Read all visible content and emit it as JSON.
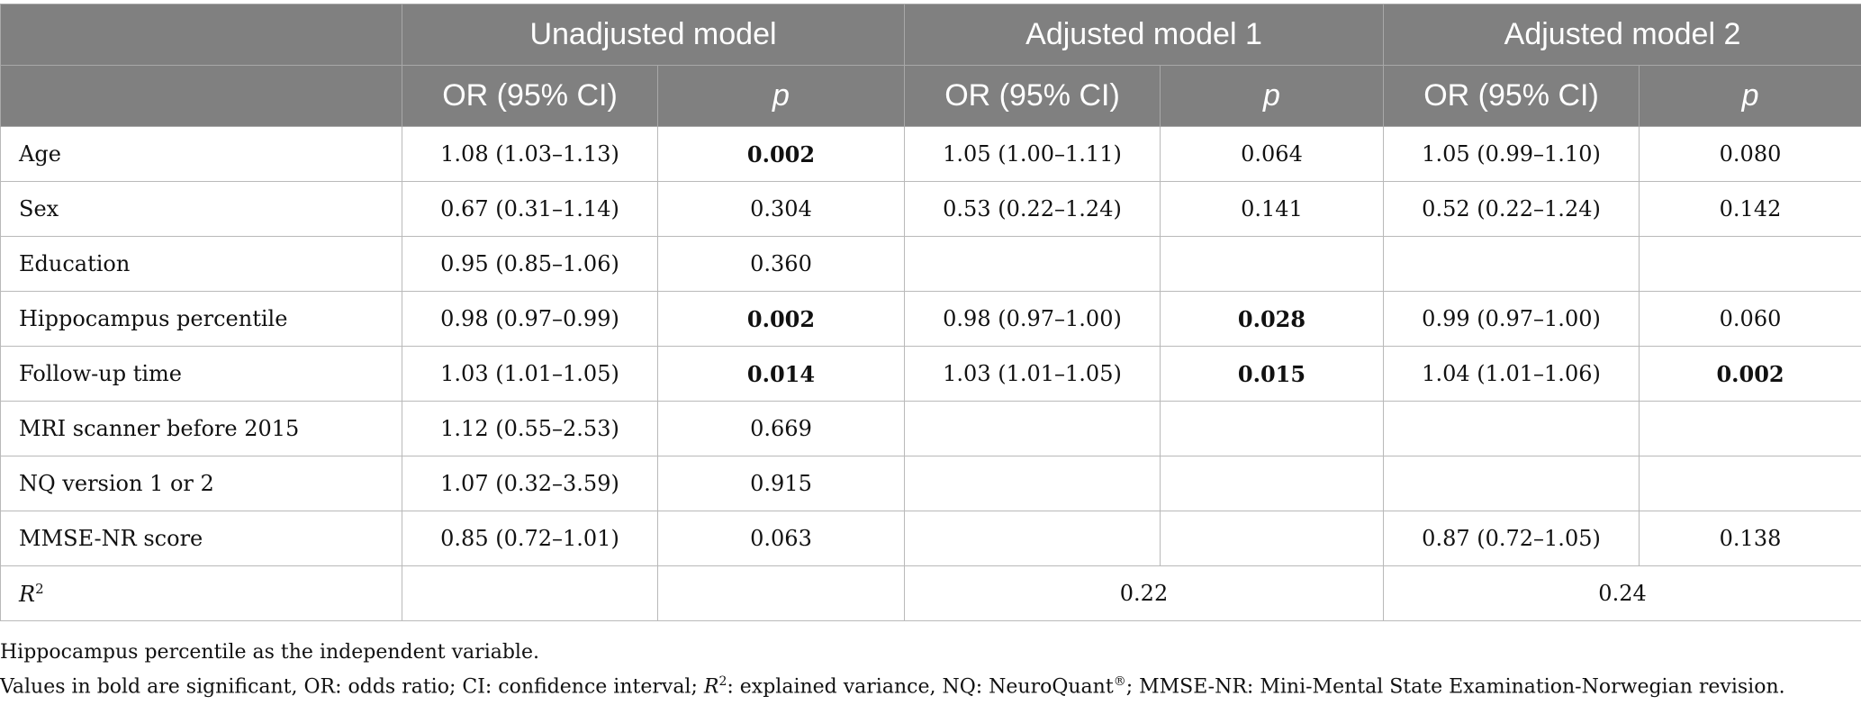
{
  "header": {
    "groups": [
      "Unadjusted model",
      "Adjusted model 1",
      "Adjusted model 2"
    ],
    "sub": {
      "or": "OR (95% CI)",
      "p": "p"
    }
  },
  "rows": [
    {
      "label": "Age",
      "u_or": "1.08 (1.03–1.13)",
      "u_p": "0.002",
      "a1_or": "1.05 (1.00–1.11)",
      "a1_p": "0.064",
      "a2_or": "1.05 (0.99–1.10)",
      "a2_p": "0.080"
    },
    {
      "label": "Sex",
      "u_or": "0.67 (0.31–1.14)",
      "u_p": "0.304",
      "a1_or": "0.53 (0.22–1.24)",
      "a1_p": "0.141",
      "a2_or": "0.52 (0.22–1.24)",
      "a2_p": "0.142"
    },
    {
      "label": "Education",
      "u_or": "0.95 (0.85–1.06)",
      "u_p": "0.360",
      "a1_or": "",
      "a1_p": "",
      "a2_or": "",
      "a2_p": ""
    },
    {
      "label": "Hippocampus percentile",
      "u_or": "0.98 (0.97–0.99)",
      "u_p": "0.002",
      "a1_or": "0.98 (0.97–1.00)",
      "a1_p": "0.028",
      "a2_or": "0.99 (0.97–1.00)",
      "a2_p": "0.060"
    },
    {
      "label": "Follow-up time",
      "u_or": "1.03 (1.01–1.05)",
      "u_p": "0.014",
      "a1_or": "1.03 (1.01–1.05)",
      "a1_p": "0.015",
      "a2_or": "1.04 (1.01–1.06)",
      "a2_p": "0.002"
    },
    {
      "label": "MRI scanner before 2015",
      "u_or": "1.12 (0.55–2.53)",
      "u_p": "0.669",
      "a1_or": "",
      "a1_p": "",
      "a2_or": "",
      "a2_p": ""
    },
    {
      "label": "NQ version 1 or 2",
      "u_or": "1.07 (0.32–3.59)",
      "u_p": "0.915",
      "a1_or": "",
      "a1_p": "",
      "a2_or": "",
      "a2_p": ""
    },
    {
      "label": "MMSE-NR score",
      "u_or": "0.85 (0.72–1.01)",
      "u_p": "0.063",
      "a1_or": "",
      "a1_p": "",
      "a2_or": "0.87 (0.72–1.05)",
      "a2_p": "0.138"
    }
  ],
  "r2": {
    "label": "R",
    "sup": "2",
    "a1": "0.22",
    "a2": "0.24"
  },
  "notes": {
    "line1": "Hippocampus percentile as the independent variable.",
    "line2_a": "Values in bold are significant, OR: odds ratio; CI: confidence interval; ",
    "line2_r": "R",
    "line2_sup": "2",
    "line2_b": ": explained variance, NQ: NeuroQuant",
    "line2_reg": "®",
    "line2_c": "; MMSE-NR: Mini-Mental State Examination-Norwegian revision."
  }
}
